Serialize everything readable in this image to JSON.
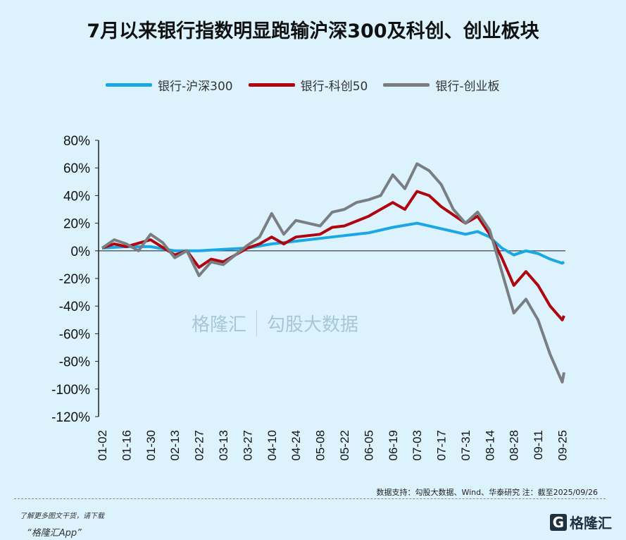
{
  "title": "7月以来银行指数明显跑输沪深300及科创、创业板块",
  "watermark": {
    "left": "格隆汇",
    "right": "勾股大数据",
    "url": "www.gogudata.com"
  },
  "source": "数据支持：勾股大数据、Wind、华泰研究   注：截至2025/09/26",
  "footer": {
    "line1": "了解更多图文干货，请下载",
    "line2": "“格隆汇App”",
    "logo": "格隆汇"
  },
  "chart_data": {
    "type": "line",
    "title": "",
    "xlabel": "",
    "ylabel": "",
    "ylim": [
      -120,
      80
    ],
    "yticks": [
      80,
      60,
      40,
      20,
      0,
      -20,
      -40,
      -60,
      -80,
      -100,
      -120
    ],
    "ytick_format": "%",
    "xticks": [
      "01-02",
      "01-16",
      "01-30",
      "02-13",
      "02-27",
      "03-13",
      "03-27",
      "04-10",
      "04-24",
      "05-08",
      "05-22",
      "06-05",
      "06-19",
      "07-03",
      "07-17",
      "07-31",
      "08-14",
      "08-28",
      "09-11",
      "09-25"
    ],
    "year": 2025,
    "legend_position": "top",
    "grid": false,
    "series": [
      {
        "name": "银行-沪深300",
        "color": "#1aa7e6",
        "points": [
          [
            "01-02",
            2
          ],
          [
            "01-16",
            3
          ],
          [
            "01-30",
            3
          ],
          [
            "02-13",
            0
          ],
          [
            "02-27",
            0
          ],
          [
            "03-13",
            1
          ],
          [
            "03-27",
            2
          ],
          [
            "04-10",
            5
          ],
          [
            "04-24",
            7
          ],
          [
            "05-08",
            9
          ],
          [
            "05-22",
            11
          ],
          [
            "06-05",
            13
          ],
          [
            "06-19",
            17
          ],
          [
            "07-03",
            20
          ],
          [
            "07-17",
            16
          ],
          [
            "07-31",
            12
          ],
          [
            "08-07",
            14
          ],
          [
            "08-14",
            10
          ],
          [
            "08-21",
            2
          ],
          [
            "08-28",
            -3
          ],
          [
            "09-04",
            0
          ],
          [
            "09-11",
            -2
          ],
          [
            "09-18",
            -6
          ],
          [
            "09-25",
            -9
          ],
          [
            "09-26",
            -8
          ]
        ]
      },
      {
        "name": "银行-科创50",
        "color": "#b0050f",
        "points": [
          [
            "01-02",
            2
          ],
          [
            "01-09",
            5
          ],
          [
            "01-16",
            3
          ],
          [
            "01-30",
            8
          ],
          [
            "02-13",
            -3
          ],
          [
            "02-20",
            0
          ],
          [
            "02-27",
            -12
          ],
          [
            "03-06",
            -6
          ],
          [
            "03-13",
            -8
          ],
          [
            "03-27",
            2
          ],
          [
            "04-03",
            5
          ],
          [
            "04-10",
            10
          ],
          [
            "04-17",
            5
          ],
          [
            "04-24",
            10
          ],
          [
            "05-08",
            12
          ],
          [
            "05-15",
            17
          ],
          [
            "05-22",
            18
          ],
          [
            "06-05",
            25
          ],
          [
            "06-19",
            35
          ],
          [
            "06-26",
            30
          ],
          [
            "07-03",
            43
          ],
          [
            "07-10",
            40
          ],
          [
            "07-17",
            32
          ],
          [
            "07-31",
            20
          ],
          [
            "08-07",
            25
          ],
          [
            "08-14",
            12
          ],
          [
            "08-21",
            -5
          ],
          [
            "08-28",
            -25
          ],
          [
            "09-04",
            -15
          ],
          [
            "09-11",
            -25
          ],
          [
            "09-18",
            -40
          ],
          [
            "09-25",
            -50
          ],
          [
            "09-26",
            -47
          ]
        ]
      },
      {
        "name": "银行-创业板",
        "color": "#7a7e82",
        "points": [
          [
            "01-02",
            2
          ],
          [
            "01-09",
            8
          ],
          [
            "01-16",
            5
          ],
          [
            "01-23",
            0
          ],
          [
            "01-30",
            12
          ],
          [
            "02-06",
            6
          ],
          [
            "02-13",
            -5
          ],
          [
            "02-20",
            0
          ],
          [
            "02-27",
            -18
          ],
          [
            "03-06",
            -8
          ],
          [
            "03-13",
            -10
          ],
          [
            "03-20",
            -3
          ],
          [
            "03-27",
            4
          ],
          [
            "04-03",
            10
          ],
          [
            "04-10",
            27
          ],
          [
            "04-17",
            12
          ],
          [
            "04-24",
            22
          ],
          [
            "05-01",
            20
          ],
          [
            "05-08",
            18
          ],
          [
            "05-15",
            28
          ],
          [
            "05-22",
            30
          ],
          [
            "05-29",
            35
          ],
          [
            "06-05",
            37
          ],
          [
            "06-12",
            40
          ],
          [
            "06-19",
            55
          ],
          [
            "06-26",
            45
          ],
          [
            "07-03",
            63
          ],
          [
            "07-10",
            58
          ],
          [
            "07-17",
            48
          ],
          [
            "07-24",
            30
          ],
          [
            "07-31",
            20
          ],
          [
            "08-07",
            28
          ],
          [
            "08-14",
            15
          ],
          [
            "08-21",
            -15
          ],
          [
            "08-28",
            -45
          ],
          [
            "09-04",
            -35
          ],
          [
            "09-11",
            -50
          ],
          [
            "09-18",
            -75
          ],
          [
            "09-25",
            -95
          ],
          [
            "09-26",
            -88
          ]
        ]
      }
    ]
  }
}
